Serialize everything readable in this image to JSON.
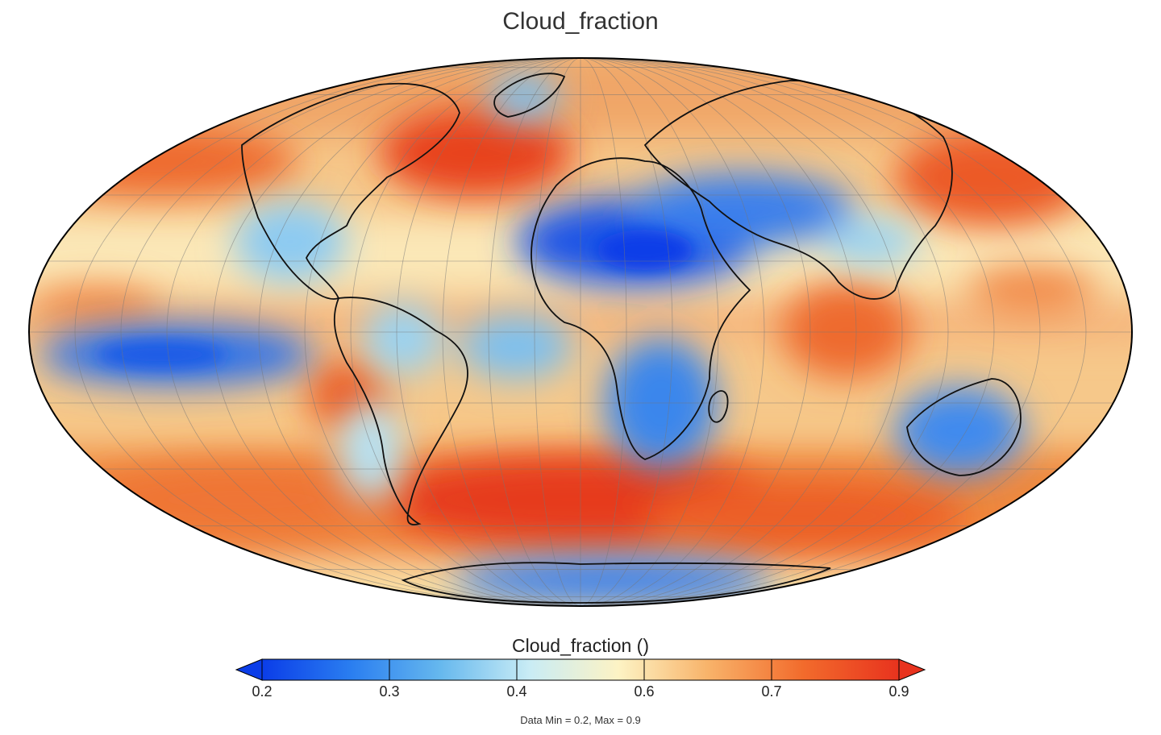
{
  "title": "Cloud_fraction",
  "projection": "mollweide",
  "colorbar": {
    "title": "Cloud_fraction ()",
    "min": 0.2,
    "max": 0.9,
    "tick_labels": [
      "0.2",
      "0.3",
      "0.4",
      "0.6",
      "0.7",
      "0.9"
    ],
    "colors": [
      "#0b3de8",
      "#2a7ef0",
      "#66b8ee",
      "#c9ecf5",
      "#fdf3c4",
      "#f8b36a",
      "#f26b2c",
      "#e8331e"
    ],
    "extend": "both"
  },
  "stats": "Data Min = 0.2, Max = 0.9",
  "colors": {
    "outline": "#000000",
    "graticule": "#777777",
    "low": "#1f5fe6",
    "high": "#e8421f",
    "mid": "#fbe7b0"
  }
}
